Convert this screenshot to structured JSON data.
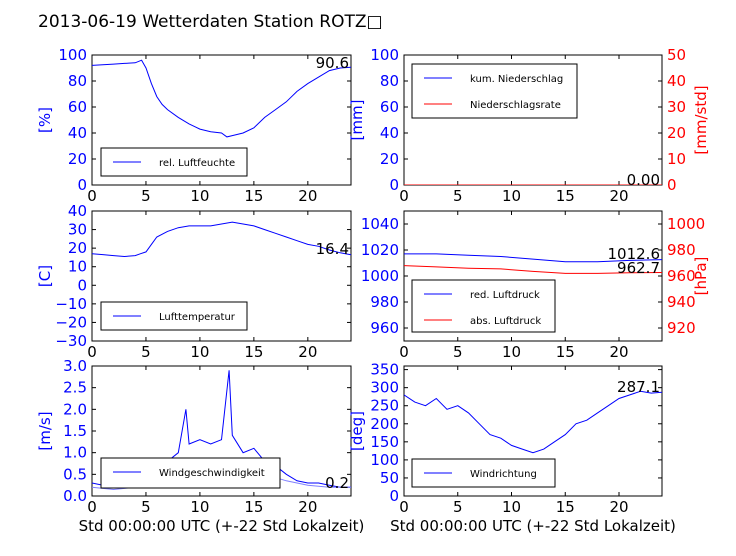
{
  "title": "2013-06-19 Wetterdaten Station ROTZ□",
  "chart_data": [
    {
      "id": "humidity",
      "type": "line",
      "ylabel": "[%]",
      "xlim": [
        0,
        24
      ],
      "ylim": [
        0,
        100
      ],
      "xticks": [
        "0",
        "5",
        "10",
        "15",
        "20"
      ],
      "yticks": [
        "0",
        "20",
        "40",
        "60",
        "80",
        "100"
      ],
      "annotation": "90.6",
      "legend": "lower-left",
      "series": [
        {
          "name": "rel. Luftfeuchte",
          "color": "#0000ff",
          "x": [
            0,
            1,
            2,
            3,
            4,
            4.6,
            5,
            5.5,
            6,
            6.5,
            7,
            8,
            9,
            10,
            11,
            12,
            12.5,
            13,
            14,
            15,
            16,
            17,
            18,
            19,
            20,
            21,
            22,
            23,
            24
          ],
          "y": [
            92,
            92.5,
            93,
            93.5,
            94,
            96,
            90,
            78,
            68,
            62,
            58,
            52,
            47,
            43,
            41,
            40,
            37,
            38,
            40,
            44,
            52,
            58,
            64,
            72,
            78,
            83,
            88,
            90,
            90.6
          ]
        }
      ]
    },
    {
      "id": "precipitation",
      "type": "line",
      "ylabel": "[mm]",
      "ylabel_right": "[mm/std]",
      "xlim": [
        0,
        24
      ],
      "ylim": [
        0,
        100
      ],
      "ylim_right": [
        0,
        50
      ],
      "xticks": [
        "0",
        "5",
        "10",
        "15",
        "20"
      ],
      "yticks": [
        "0",
        "20",
        "40",
        "60",
        "80",
        "100"
      ],
      "yticks_right": [
        "0",
        "10",
        "20",
        "30",
        "40",
        "50"
      ],
      "annotation": "0.00",
      "legend": "upper-left",
      "series": [
        {
          "name": "kum. Niederschlag",
          "color": "#0000ff",
          "x": [
            0,
            24
          ],
          "y": [
            0,
            0
          ]
        },
        {
          "name": "Niederschlagsrate",
          "color": "#ff0000",
          "x": [
            0,
            24
          ],
          "y": [
            0,
            0
          ]
        }
      ]
    },
    {
      "id": "temperature",
      "type": "line",
      "ylabel": "[C]",
      "xlim": [
        0,
        24
      ],
      "ylim": [
        -30,
        40
      ],
      "xticks": [
        "0",
        "5",
        "10",
        "15",
        "20"
      ],
      "yticks": [
        "−30",
        "−20",
        "−10",
        "0",
        "10",
        "20",
        "30",
        "40"
      ],
      "annotation": "16.4",
      "legend": "lower-left",
      "series": [
        {
          "name": "Lufttemperatur",
          "color": "#0000ff",
          "x": [
            0,
            1,
            2,
            3,
            4,
            4.5,
            5,
            5.5,
            6,
            7,
            8,
            9,
            10,
            11,
            12,
            13,
            14,
            15,
            16,
            17,
            18,
            19,
            20,
            21,
            22,
            23,
            24
          ],
          "y": [
            17,
            16.5,
            16,
            15.5,
            16,
            17,
            18,
            22,
            26,
            29,
            31,
            32,
            32,
            32,
            33,
            34,
            33,
            32,
            30,
            28,
            26,
            24,
            22,
            21,
            19,
            17.5,
            16.4
          ]
        }
      ]
    },
    {
      "id": "pressure",
      "type": "line",
      "ylabel_right": "[hPa]",
      "xlim": [
        0,
        24
      ],
      "ylim": [
        950,
        1050
      ],
      "ylim_right": [
        910,
        1010
      ],
      "xticks": [
        "0",
        "5",
        "10",
        "15",
        "20"
      ],
      "yticks": [
        "960",
        "980",
        "1000",
        "1020",
        "1040"
      ],
      "yticks_right": [
        "920",
        "940",
        "960",
        "980",
        "1000"
      ],
      "annotations": [
        "1012.6",
        "962.7"
      ],
      "legend": "lower-left",
      "series": [
        {
          "name": "red. Luftdruck",
          "color": "#0000ff",
          "x": [
            0,
            3,
            6,
            9,
            12,
            15,
            18,
            21,
            24
          ],
          "y": [
            1017,
            1017,
            1016,
            1015,
            1013,
            1011,
            1011,
            1012,
            1012.6
          ]
        },
        {
          "name": "abs. Luftdruck",
          "color": "#ff0000",
          "x": [
            0,
            3,
            6,
            9,
            12,
            15,
            18,
            21,
            24
          ],
          "y": [
            1008,
            1007,
            1006,
            1005.5,
            1003.5,
            1002,
            1002,
            1002.5,
            1002.7
          ]
        }
      ]
    },
    {
      "id": "wind-speed",
      "type": "line",
      "ylabel": "[m/s]",
      "xlabel": "Std 00:00:00 UTC (+-22 Std Lokalzeit)",
      "xlim": [
        0,
        24
      ],
      "ylim": [
        0,
        3.0
      ],
      "xticks": [
        "0",
        "5",
        "10",
        "15",
        "20"
      ],
      "yticks": [
        "0.0",
        "0.5",
        "1.0",
        "1.5",
        "2.0",
        "2.5",
        "3.0"
      ],
      "annotation": "0.2",
      "legend": "lower-left",
      "series": [
        {
          "name": "Windgeschwindigkeit",
          "color": "#0000ff",
          "x": [
            0,
            1,
            2,
            3,
            4,
            5,
            6,
            7,
            8,
            8.7,
            9,
            10,
            11,
            12,
            12.7,
            13,
            14,
            15,
            16,
            17,
            18,
            19,
            20,
            21,
            22,
            23,
            24
          ],
          "y": [
            0.3,
            0.25,
            0.3,
            0.2,
            0.3,
            0.35,
            0.45,
            0.8,
            1.0,
            2.0,
            1.2,
            1.3,
            1.2,
            1.3,
            2.9,
            1.4,
            1.0,
            1.1,
            0.8,
            0.7,
            0.5,
            0.35,
            0.3,
            0.3,
            0.25,
            0.2,
            0.2
          ]
        },
        {
          "color": "#7f7fff",
          "x": [
            0,
            2,
            4,
            6,
            8,
            10,
            12,
            14,
            16,
            18,
            20,
            22,
            24
          ],
          "y": [
            0.2,
            0.15,
            0.2,
            0.4,
            0.6,
            0.7,
            0.7,
            0.7,
            0.5,
            0.35,
            0.25,
            0.2,
            0.2
          ]
        }
      ]
    },
    {
      "id": "wind-direction",
      "type": "line",
      "ylabel": "[deg]",
      "xlabel": "Std 00:00:00 UTC (+-22 Std Lokalzeit)",
      "xlim": [
        0,
        24
      ],
      "ylim": [
        0,
        360
      ],
      "xticks": [
        "0",
        "5",
        "10",
        "15",
        "20"
      ],
      "yticks": [
        "0",
        "50",
        "100",
        "150",
        "200",
        "250",
        "300",
        "350"
      ],
      "annotation": "287.1",
      "legend": "lower-left",
      "series": [
        {
          "name": "Windrichtung",
          "color": "#0000ff",
          "x": [
            0,
            1,
            2,
            3,
            4,
            5,
            6,
            7,
            8,
            9,
            10,
            11,
            12,
            13,
            14,
            15,
            16,
            17,
            18,
            19,
            20,
            21,
            22,
            23,
            24
          ],
          "y": [
            280,
            260,
            250,
            270,
            240,
            250,
            230,
            200,
            170,
            160,
            140,
            130,
            120,
            130,
            150,
            170,
            200,
            210,
            230,
            250,
            270,
            280,
            290,
            285,
            287.1
          ]
        }
      ]
    }
  ]
}
